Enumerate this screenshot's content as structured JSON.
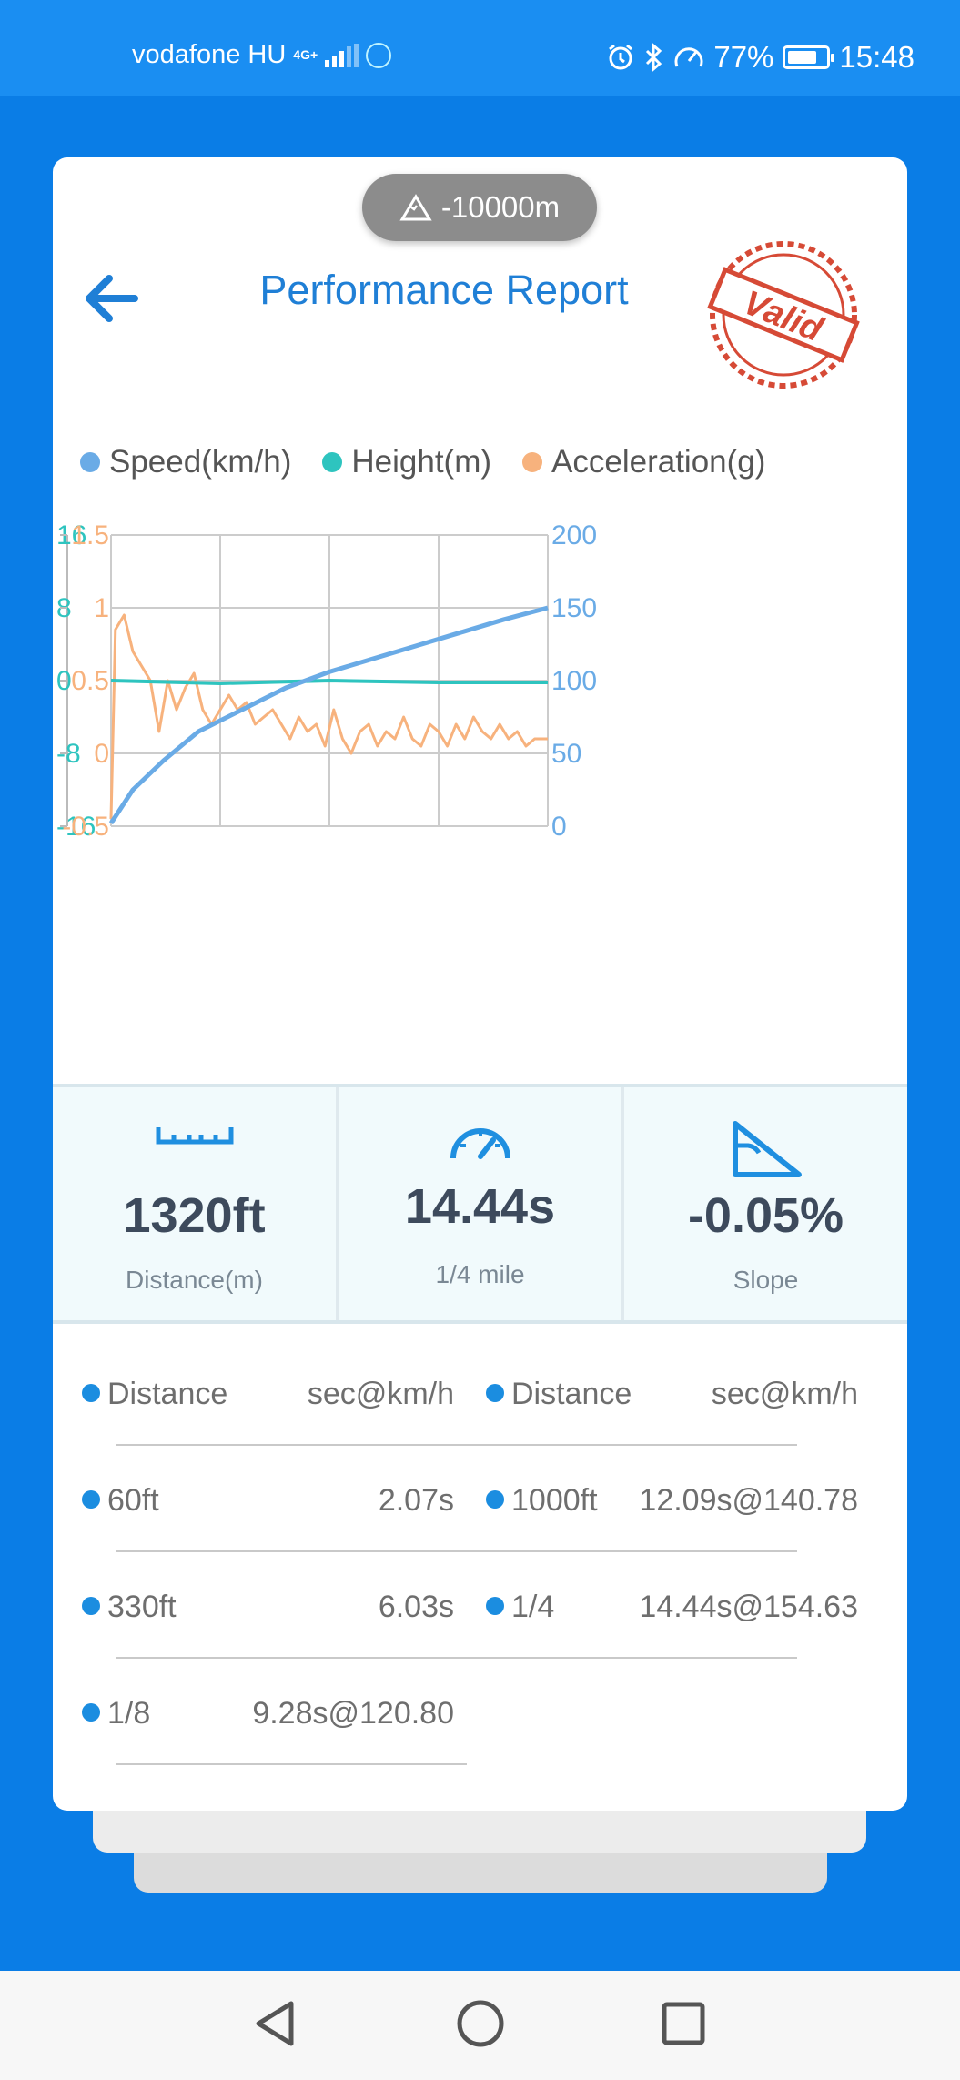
{
  "status_bar": {
    "carrier": "vodafone HU",
    "network": "4G+",
    "battery": "77%",
    "battery_level": 0.77,
    "time": "15:48"
  },
  "card": {
    "altitude": "-10000m",
    "title": "Performance Report",
    "stamp_text": "Valid"
  },
  "colors": {
    "speed": "#6aabe6",
    "height": "#2ec4bf",
    "acceleration": "#f7b27d",
    "accent": "#1f7fd6"
  },
  "chart_data": {
    "type": "line",
    "legend": [
      "Speed(km/h)",
      "Height(m)",
      "Acceleration(g)"
    ],
    "height_axis_ticks": [
      "16",
      "8",
      "0",
      "-8",
      "-16"
    ],
    "acc_axis_ticks": [
      "1.5",
      "1",
      "0.5",
      "0",
      "-0.5"
    ],
    "speed_axis_ticks": [
      "200",
      "150",
      "100",
      "50",
      "0"
    ],
    "height_range": [
      -16,
      16
    ],
    "acc_range": [
      -0.5,
      1.5
    ],
    "speed_range": [
      0,
      200
    ],
    "series": [
      {
        "name": "Speed(km/h)",
        "x": [
          0,
          0.05,
          0.12,
          0.2,
          0.3,
          0.4,
          0.5,
          0.6,
          0.7,
          0.8,
          0.9,
          1.0
        ],
        "values": [
          2,
          25,
          45,
          65,
          80,
          95,
          106,
          115,
          124,
          133,
          142,
          150
        ]
      },
      {
        "name": "Height(m)",
        "x": [
          0,
          0.25,
          0.5,
          0.75,
          1.0
        ],
        "values": [
          0,
          -0.3,
          0,
          -0.2,
          -0.2
        ]
      },
      {
        "name": "Acceleration(g)",
        "x": [
          0,
          0.01,
          0.03,
          0.05,
          0.07,
          0.09,
          0.11,
          0.13,
          0.15,
          0.17,
          0.19,
          0.21,
          0.23,
          0.25,
          0.27,
          0.29,
          0.31,
          0.33,
          0.35,
          0.37,
          0.39,
          0.41,
          0.43,
          0.45,
          0.47,
          0.49,
          0.51,
          0.53,
          0.55,
          0.57,
          0.59,
          0.61,
          0.63,
          0.65,
          0.67,
          0.69,
          0.71,
          0.73,
          0.75,
          0.77,
          0.79,
          0.81,
          0.83,
          0.85,
          0.87,
          0.89,
          0.91,
          0.93,
          0.95,
          0.97,
          1.0
        ],
        "values": [
          -0.45,
          0.85,
          0.95,
          0.7,
          0.6,
          0.5,
          0.15,
          0.5,
          0.3,
          0.45,
          0.55,
          0.3,
          0.2,
          0.3,
          0.4,
          0.3,
          0.35,
          0.2,
          0.25,
          0.3,
          0.2,
          0.1,
          0.25,
          0.15,
          0.2,
          0.05,
          0.3,
          0.1,
          0.0,
          0.15,
          0.2,
          0.05,
          0.15,
          0.1,
          0.25,
          0.1,
          0.05,
          0.2,
          0.15,
          0.05,
          0.2,
          0.1,
          0.25,
          0.15,
          0.1,
          0.2,
          0.1,
          0.15,
          0.05,
          0.1,
          0.1
        ]
      }
    ],
    "grid": true
  },
  "stats": [
    {
      "value": "1320ft",
      "label": "Distance(m)",
      "icon": "ruler-icon"
    },
    {
      "value": "14.44s",
      "label": "1/4 mile",
      "icon": "speedometer-icon"
    },
    {
      "value": "-0.05%",
      "label": "Slope",
      "icon": "slope-icon"
    }
  ],
  "table": {
    "headers": [
      "Distance",
      "sec@km/h",
      "Distance",
      "sec@km/h"
    ],
    "left": [
      {
        "distance": "60ft",
        "time": "2.07s"
      },
      {
        "distance": "330ft",
        "time": "6.03s"
      },
      {
        "distance": "1/8",
        "time": "9.28s@120.80"
      }
    ],
    "right": [
      {
        "distance": "1000ft",
        "time": "12.09s@140.78"
      },
      {
        "distance": "1/4",
        "time": "14.44s@154.63"
      }
    ]
  }
}
